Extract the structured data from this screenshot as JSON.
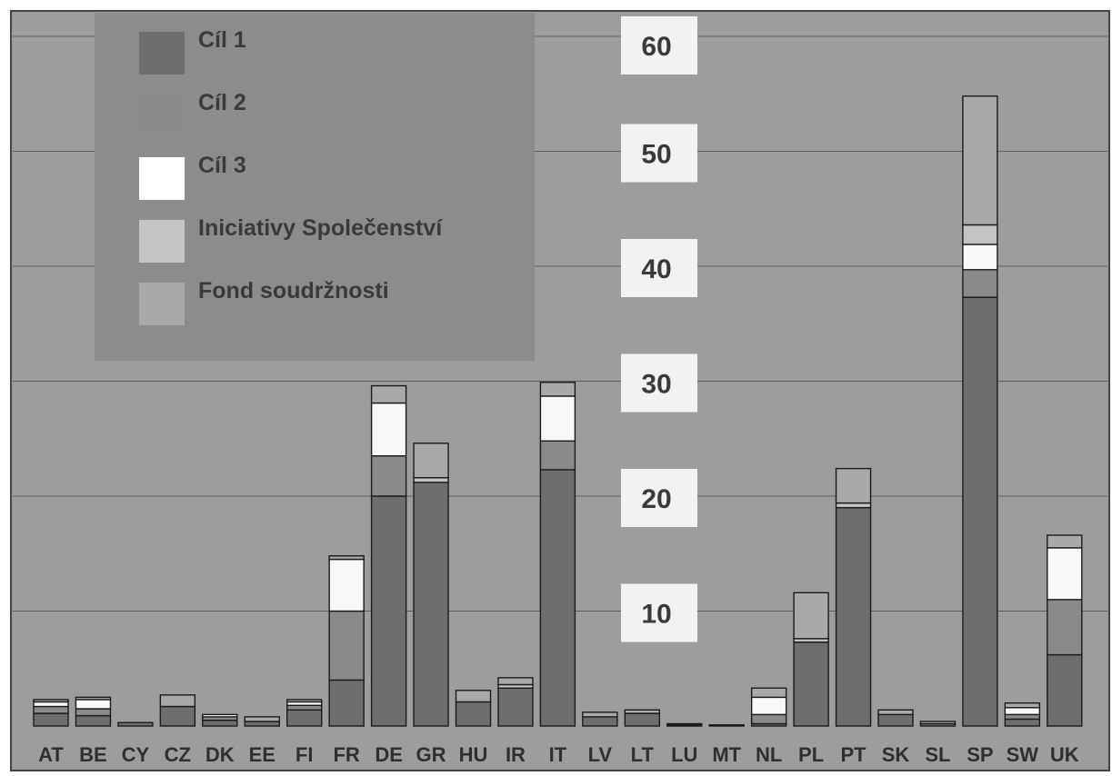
{
  "chart_data": {
    "type": "bar",
    "stacked": true,
    "grayscale": true,
    "categories": [
      "AT",
      "BE",
      "CY",
      "CZ",
      "DK",
      "EE",
      "FI",
      "FR",
      "DE",
      "GR",
      "HU",
      "IR",
      "IT",
      "LV",
      "LT",
      "LU",
      "MT",
      "NL",
      "PL",
      "PT",
      "SK",
      "SL",
      "SP",
      "SW",
      "UK"
    ],
    "series": [
      {
        "name": "Cíl 1",
        "color": "#6e6e6e",
        "values": [
          1.1,
          0.9,
          0.3,
          1.7,
          0.5,
          0.4,
          1.4,
          4.0,
          20.0,
          21.2,
          2.1,
          3.3,
          22.3,
          0.8,
          1.1,
          0.1,
          0.1,
          0.2,
          7.3,
          19.0,
          1.0,
          0.2,
          37.3,
          0.6,
          6.2
        ]
      },
      {
        "name": "Cíl 2",
        "color": "#8a8a8a",
        "values": [
          0.6,
          0.6,
          0.0,
          0.0,
          0.3,
          0.0,
          0.4,
          6.0,
          3.5,
          0.0,
          0.0,
          0.0,
          2.5,
          0.0,
          0.0,
          0.1,
          0.0,
          0.8,
          0.0,
          0.0,
          0.0,
          0.0,
          2.4,
          0.4,
          4.8
        ]
      },
      {
        "name": "Cíl 3",
        "color": "#f8f8f8",
        "values": [
          0.4,
          0.8,
          0.0,
          0.0,
          0.2,
          0.0,
          0.3,
          4.5,
          4.6,
          0.0,
          0.0,
          0.0,
          3.9,
          0.0,
          0.0,
          0.0,
          0.0,
          1.5,
          0.0,
          0.0,
          0.0,
          0.0,
          2.2,
          0.6,
          4.5
        ]
      },
      {
        "name": "Iniciativy Společenství",
        "color": "#c4c4c4",
        "values": [
          0.0,
          0.0,
          0.0,
          0.0,
          0.0,
          0.0,
          0.0,
          0.0,
          0.0,
          0.4,
          0.0,
          0.3,
          0.0,
          0.0,
          0.0,
          0.0,
          0.0,
          0.0,
          0.3,
          0.4,
          0.0,
          0.0,
          1.7,
          0.0,
          0.0
        ]
      },
      {
        "name": "Fond soudržnosti",
        "color": "#a9a9a9",
        "values": [
          0.2,
          0.2,
          0.0,
          1.0,
          0.0,
          0.4,
          0.2,
          0.3,
          1.5,
          3.0,
          1.0,
          0.6,
          1.2,
          0.4,
          0.3,
          0.0,
          0.0,
          0.8,
          4.0,
          3.0,
          0.4,
          0.2,
          11.2,
          0.4,
          1.1
        ]
      }
    ],
    "ylim": [
      0,
      60
    ],
    "yticks": [
      10,
      20,
      30,
      40,
      50,
      60
    ],
    "grid": true,
    "legend_position": "top-left"
  }
}
